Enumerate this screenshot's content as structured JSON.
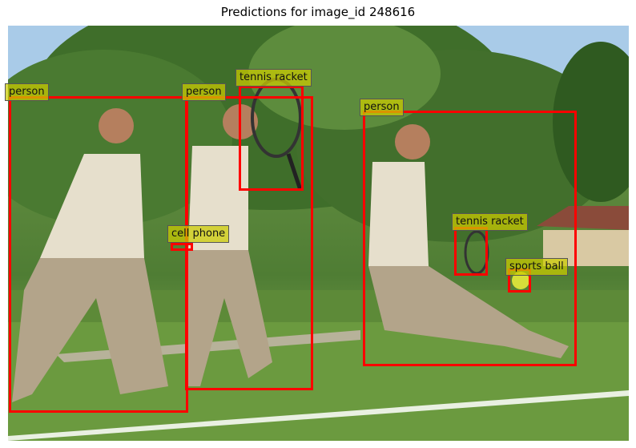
{
  "title": "Predictions for image_id 248616",
  "detections": [
    {
      "label": "person"
    },
    {
      "label": "person"
    },
    {
      "label": "tennis racket"
    },
    {
      "label": "person"
    },
    {
      "label": "cell phone"
    },
    {
      "label": "tennis racket"
    },
    {
      "label": "sports ball"
    }
  ],
  "colors": {
    "box": "#ff0000",
    "label_bg": "#cccc00"
  }
}
